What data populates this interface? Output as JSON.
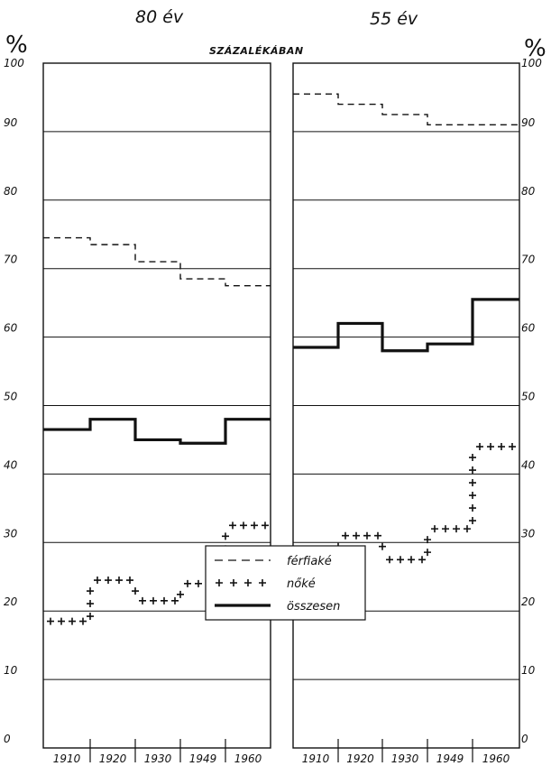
{
  "chart_data": [
    {
      "type": "line",
      "title": "80 év",
      "subtitle": "SZÁZALÉKÁBAN",
      "ylabel": "%",
      "ylim": [
        0,
        100
      ],
      "yticks": [
        "0",
        "10",
        "20",
        "30",
        "40",
        "50",
        "60",
        "70",
        "80",
        "90",
        "100"
      ],
      "categories": [
        "1910",
        "1920",
        "1930",
        "1949",
        "1960"
      ],
      "series": [
        {
          "name": "férfiaké",
          "style": "dashed",
          "values": [
            74.5,
            73.5,
            71,
            68.5,
            67.5
          ]
        },
        {
          "name": "nőké",
          "style": "cross",
          "values": [
            18.5,
            24.5,
            21.5,
            24,
            32.5
          ]
        },
        {
          "name": "összesen",
          "style": "solid",
          "values": [
            46.5,
            48,
            45,
            44.5,
            48
          ]
        }
      ]
    },
    {
      "type": "line",
      "title": "55 év",
      "ylabel": "%",
      "ylim": [
        0,
        100
      ],
      "yticks": [
        "0",
        "10",
        "20",
        "30",
        "40",
        "50",
        "60",
        "70",
        "80",
        "90",
        "100"
      ],
      "categories": [
        "1910",
        "1920",
        "1930",
        "1949",
        "1960"
      ],
      "series": [
        {
          "name": "férfiaké",
          "style": "dashed",
          "values": [
            95.5,
            94,
            92.5,
            91,
            91
          ]
        },
        {
          "name": "nőké",
          "style": "cross",
          "values": [
            23,
            31,
            27.5,
            32,
            44
          ]
        },
        {
          "name": "összesen",
          "style": "solid",
          "values": [
            58.5,
            62,
            58,
            59,
            65.5
          ]
        }
      ]
    }
  ],
  "legend": {
    "items": [
      {
        "label": "férfiaké",
        "style": "dashed"
      },
      {
        "label": "nőké",
        "style": "cross"
      },
      {
        "label": "összesen",
        "style": "solid"
      }
    ]
  },
  "colors": {
    "ink": "#111111",
    "background": "#ffffff"
  }
}
